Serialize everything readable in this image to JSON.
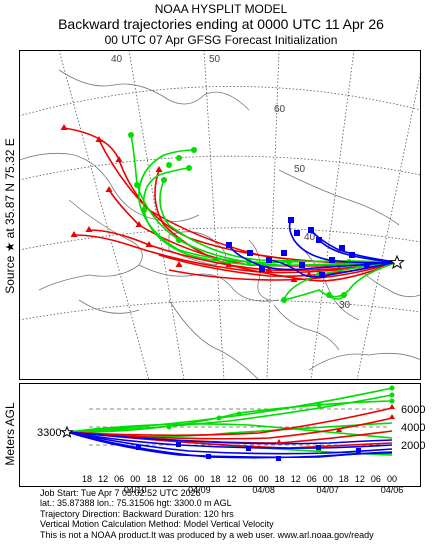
{
  "header": {
    "line1": "NOAA HYSPLIT MODEL",
    "line2": "Backward trajectories ending at 0000 UTC 11 Apr 26",
    "line3": "00 UTC 07 Apr    GFSG  Forecast Initialization"
  },
  "source": {
    "label": "Source ★ at   35.87 N   75.32 E",
    "lat": 35.87,
    "lon": 75.32
  },
  "map": {
    "lat_labels": [
      "60",
      "50",
      "40",
      "30"
    ],
    "lon_labels": [
      "40",
      "50"
    ],
    "colors": {
      "red": "#ee0000",
      "blue": "#0000ee",
      "green": "#00dd00",
      "coast": "#777777",
      "grid": "#444444"
    }
  },
  "vertical": {
    "axis_label": "Meters AGL",
    "start_height": "3300",
    "right_labels": [
      "6000",
      "4000",
      "2000"
    ],
    "hour_ticks": [
      "18",
      "12",
      "06",
      "00",
      "18",
      "12",
      "06",
      "00",
      "18",
      "12",
      "06",
      "00",
      "18",
      "12",
      "06",
      "00",
      "18",
      "12",
      "06",
      "00"
    ],
    "date_labels": [
      "04/10",
      "04/09",
      "04/08",
      "04/07",
      "04/06"
    ]
  },
  "info": {
    "line1": "Job Start: Tue Apr  7 05:02:52 UTC 2026",
    "line2": "lat.: 35.87388   lon.: 75.31506   hgt: 3300.0 m AGL",
    "line3": "Trajectory Direction: Backward        Duration: 120 hrs",
    "line4": "Vertical Motion Calculation Method: Model Vertical Velocity",
    "line5": "This is not a NOAA product.It was produced by a web user. www.arl.noaa.gov/ready"
  }
}
